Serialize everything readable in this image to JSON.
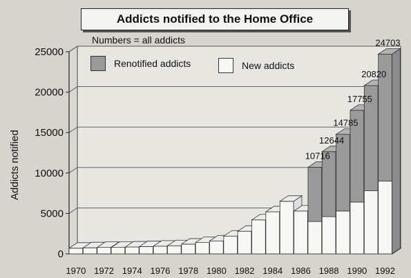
{
  "chart_data": {
    "type": "bar",
    "stacked": true,
    "title": "Addicts notified to the Home Office",
    "subtitle": "Numbers = all addicts",
    "ylabel": "Addicts notified",
    "xlabel": "",
    "ylim": [
      0,
      25000
    ],
    "yticks": [
      0,
      5000,
      10000,
      15000,
      20000,
      25000
    ],
    "xtick_labels": [
      "1970",
      "1972",
      "1974",
      "1976",
      "1978",
      "1980",
      "1982",
      "1984",
      "1986",
      "1988",
      "1990",
      "1992"
    ],
    "categories": [
      "1970",
      "1971",
      "1972",
      "1973",
      "1974",
      "1975",
      "1976",
      "1977",
      "1978",
      "1979",
      "1980",
      "1981",
      "1982",
      "1983",
      "1984",
      "1985",
      "1986",
      "1987",
      "1988",
      "1989",
      "1990",
      "1991",
      "1992"
    ],
    "series": [
      {
        "name": "New addicts",
        "color": "#f7f7f5",
        "values": [
          700,
          750,
          800,
          800,
          850,
          900,
          950,
          1000,
          1200,
          1400,
          1600,
          2200,
          2800,
          4200,
          5200,
          6500,
          5300,
          4000,
          4600,
          5300,
          6400,
          7800,
          9000
        ]
      },
      {
        "name": "Renotified addicts",
        "color": "#9a9a9a",
        "values": [
          0,
          0,
          0,
          0,
          0,
          0,
          0,
          0,
          0,
          0,
          0,
          0,
          0,
          0,
          0,
          0,
          0,
          6716,
          8044,
          9485,
          11355,
          13020,
          15703
        ]
      }
    ],
    "totals_labels": [
      "10716",
      "12644",
      "14785",
      "17755",
      "20820",
      "24703"
    ],
    "totals_label_years": [
      "1987",
      "1988",
      "1989",
      "1990",
      "1991",
      "1992"
    ],
    "grid": true,
    "legend": "top"
  }
}
